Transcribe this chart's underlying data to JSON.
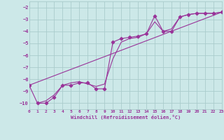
{
  "xlabel": "Windchill (Refroidissement éolien,°C)",
  "background_color": "#cce8e8",
  "grid_color": "#aacccc",
  "line_color": "#993399",
  "xlim": [
    0,
    23
  ],
  "ylim": [
    -10.5,
    -1.5
  ],
  "xticks": [
    0,
    1,
    2,
    3,
    4,
    5,
    6,
    7,
    8,
    9,
    10,
    11,
    12,
    13,
    14,
    15,
    16,
    17,
    18,
    19,
    20,
    21,
    22,
    23
  ],
  "yticks": [
    -10,
    -9,
    -8,
    -7,
    -6,
    -5,
    -4,
    -3,
    -2
  ],
  "series1_x": [
    0,
    1,
    2,
    3,
    4,
    5,
    6,
    7,
    8,
    9,
    10,
    11,
    12,
    13,
    14,
    15,
    16,
    17,
    18,
    19,
    20,
    21,
    22,
    23
  ],
  "series1_y": [
    -8.5,
    -10.0,
    -10.0,
    -9.5,
    -8.5,
    -8.5,
    -8.3,
    -8.3,
    -8.8,
    -8.8,
    -4.9,
    -4.6,
    -4.5,
    -4.4,
    -4.2,
    -2.7,
    -4.0,
    -4.0,
    -2.8,
    -2.6,
    -2.5,
    -2.5,
    -2.5,
    -2.4
  ],
  "series2_x": [
    1,
    2,
    3,
    4,
    5,
    6,
    7,
    8,
    9,
    10,
    11,
    12,
    13,
    14,
    15,
    16,
    17,
    18,
    19,
    20,
    21,
    22,
    23
  ],
  "series2_y": [
    -10.0,
    -9.8,
    -9.3,
    -8.5,
    -8.3,
    -8.2,
    -8.4,
    -8.6,
    -8.4,
    -6.3,
    -4.9,
    -4.6,
    -4.5,
    -4.2,
    -3.2,
    -4.0,
    -3.8,
    -2.8,
    -2.6,
    -2.5,
    -2.5,
    -2.5,
    -2.4
  ],
  "series3_x": [
    0,
    23
  ],
  "series3_y": [
    -8.5,
    -2.4
  ],
  "marker_x": [
    0,
    1,
    2,
    3,
    4,
    5,
    6,
    7,
    8,
    9,
    10,
    11,
    12,
    13,
    14,
    15,
    16,
    17,
    18,
    19,
    20,
    21,
    22,
    23
  ],
  "marker_y": [
    -8.5,
    -10.0,
    -10.0,
    -9.5,
    -8.5,
    -8.5,
    -8.3,
    -8.3,
    -8.8,
    -8.8,
    -4.9,
    -4.6,
    -4.5,
    -4.4,
    -4.2,
    -2.7,
    -4.0,
    -4.0,
    -2.8,
    -2.6,
    -2.5,
    -2.5,
    -2.5,
    -2.4
  ]
}
